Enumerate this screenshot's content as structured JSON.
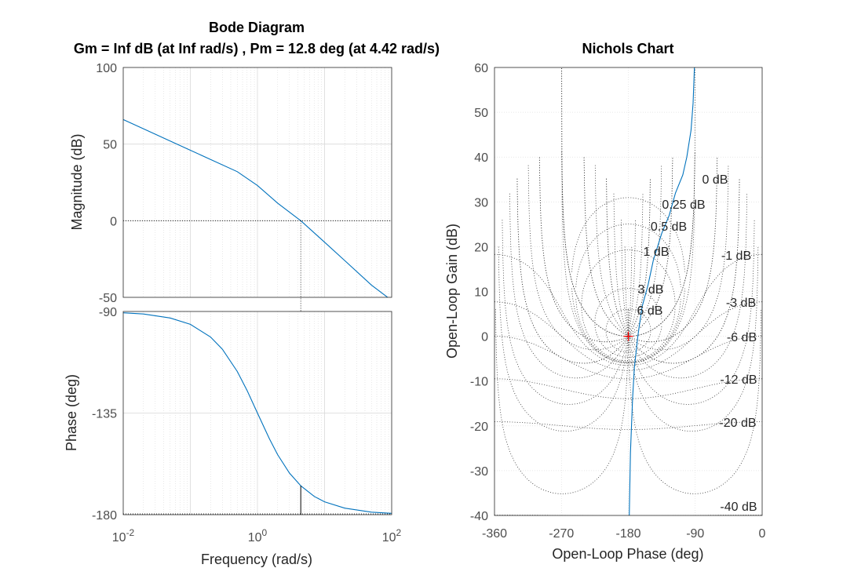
{
  "chart_data": [
    {
      "type": "line",
      "title": "Bode Diagram",
      "subtitle": "Gm = Inf dB (at Inf rad/s) ,  Pm = 12.8 deg (at 4.42 rad/s)",
      "xscale": "log",
      "xlabel": "Frequency  (rad/s)",
      "xlim": [
        0.01,
        100
      ],
      "xticks": [
        {
          "base": "10",
          "exp": "-2"
        },
        {
          "base": "10",
          "exp": "0"
        },
        {
          "base": "10",
          "exp": "2"
        }
      ],
      "grid": true,
      "crossover_frequency": 4.42,
      "phase_margin": 12.8,
      "panels": [
        {
          "name": "magnitude",
          "ylabel": "Magnitude (dB)",
          "ylim": [
            -50,
            100
          ],
          "yticks": [
            "100",
            "50",
            "0",
            "-50"
          ],
          "series": [
            {
              "x": [
                0.01,
                0.02,
                0.05,
                0.1,
                0.2,
                0.5,
                1,
                2,
                4.42,
                10,
                20,
                50,
                100
              ],
              "y": [
                66,
                60,
                52,
                46,
                40,
                32,
                23,
                11.5,
                0,
                -14,
                -26,
                -42,
                -52
              ]
            }
          ]
        },
        {
          "name": "phase",
          "ylabel": "Phase (deg)",
          "ylim": [
            -180,
            -90
          ],
          "yticks": [
            "-90",
            "-135",
            "-180"
          ],
          "series": [
            {
              "x": [
                0.01,
                0.02,
                0.05,
                0.1,
                0.2,
                0.3,
                0.5,
                0.7,
                1,
                1.5,
                2,
                3,
                4.42,
                7,
                10,
                20,
                50,
                100
              ],
              "y": [
                -90.6,
                -91.1,
                -92.9,
                -95.7,
                -101.3,
                -106.7,
                -116.6,
                -125,
                -135,
                -146.3,
                -153.4,
                -161.6,
                -167.2,
                -171.9,
                -174.3,
                -177.1,
                -178.9,
                -179.4
              ]
            }
          ]
        }
      ]
    },
    {
      "type": "line",
      "title": "Nichols Chart",
      "xlabel": "Open-Loop Phase (deg)",
      "ylabel": "Open-Loop Gain (dB)",
      "xlim": [
        -360,
        0
      ],
      "ylim": [
        -40,
        60
      ],
      "xticks": [
        "-360",
        "-270",
        "-180",
        "-90",
        "0"
      ],
      "yticks": [
        "60",
        "50",
        "40",
        "30",
        "20",
        "10",
        "0",
        "-10",
        "-20",
        "-30",
        "-40"
      ],
      "grid": true,
      "critical_point": {
        "phase": -180,
        "gain": 0
      },
      "contour_labels": [
        "0 dB",
        "0.25 dB",
        "0.5 dB",
        "1 dB",
        "-1 dB",
        "3 dB",
        "6 dB",
        "-3 dB",
        "-6 dB",
        "-12 dB",
        "-20 dB",
        "-40 dB"
      ],
      "series": [
        {
          "phase": [
            -179.4,
            -178.9,
            -177.1,
            -174.3,
            -171.9,
            -167.2,
            -161.6,
            -153.4,
            -146.3,
            -135,
            -125,
            -116.6,
            -106.7,
            -101.3,
            -95.7,
            -92.9,
            -91.1,
            -90.6
          ],
          "gain": [
            -52,
            -42,
            -26,
            -14,
            -7,
            0,
            6.5,
            11.5,
            17,
            23,
            27,
            32,
            36,
            40,
            46,
            52,
            60,
            66
          ]
        }
      ]
    }
  ],
  "colors": {
    "line": "#0072bd",
    "grid": "#d9d9d9",
    "axis": "#262626",
    "critical_point": "#ff0000"
  }
}
